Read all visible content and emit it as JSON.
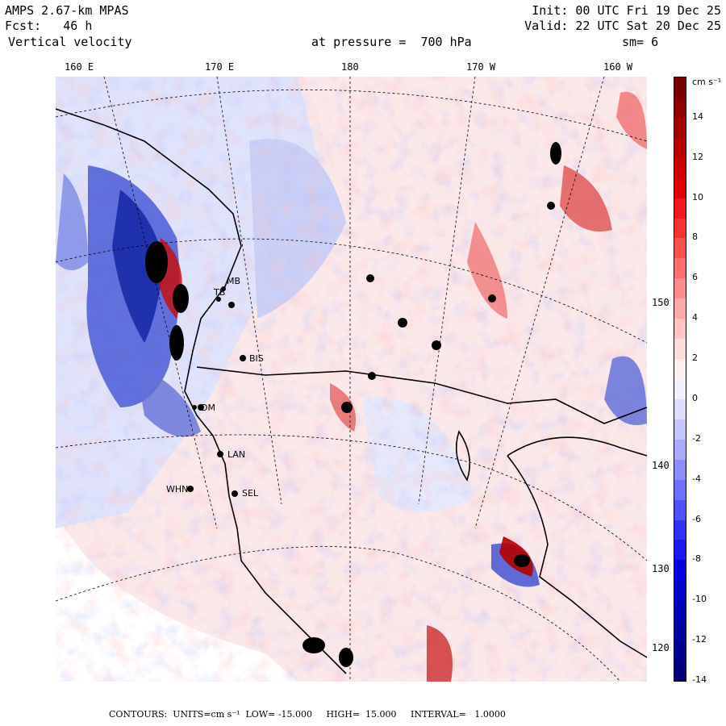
{
  "header": {
    "model": "AMPS 2.67-km MPAS",
    "init": "Init: 00 UTC Fri 19 Dec 25",
    "forecast": "Fcst:   46 h",
    "valid": "Valid: 22 UTC Sat 20 Dec 25",
    "variable": "Vertical velocity",
    "pressure": "at pressure =  700 hPa",
    "smoothing": "sm= 6"
  },
  "longitude_labels": [
    "160 E",
    "170 E",
    "180",
    "170 W",
    "160 W"
  ],
  "latitude_labels": [
    "150 W",
    "140 W",
    "130 W",
    "120 W"
  ],
  "stations": [
    "BIS",
    "DM",
    "LAN",
    "WHN",
    "SEL",
    "MB",
    "TB"
  ],
  "colorbar": {
    "units": "cm s⁻¹",
    "tick_labels": [
      "14",
      "12",
      "10",
      "8",
      "6",
      "4",
      "2",
      "0",
      "-2",
      "-4",
      "-6",
      "-8",
      "-10",
      "-12",
      "-14"
    ],
    "colors": [
      "#7a0000",
      "#8e0000",
      "#a30000",
      "#b80000",
      "#cc0000",
      "#e00000",
      "#f01818",
      "#f83030",
      "#ff5050",
      "#ff6e6e",
      "#ff8c8c",
      "#ffaaaa",
      "#ffc4c4",
      "#ffdcdc",
      "#fff0f0",
      "#f0f0ff",
      "#dcdcff",
      "#c4c4ff",
      "#aaaaff",
      "#8c8cff",
      "#6e6eff",
      "#5050ff",
      "#3030f8",
      "#1818f0",
      "#0000e0",
      "#0000cc",
      "#0000b8",
      "#0000a3",
      "#00008e",
      "#00007a"
    ]
  },
  "footer": {
    "contours": "CONTOURS:  UNITS=cm s⁻¹  LOW= -15.000     HIGH=  15.000     INTERVAL=   1.0000"
  }
}
